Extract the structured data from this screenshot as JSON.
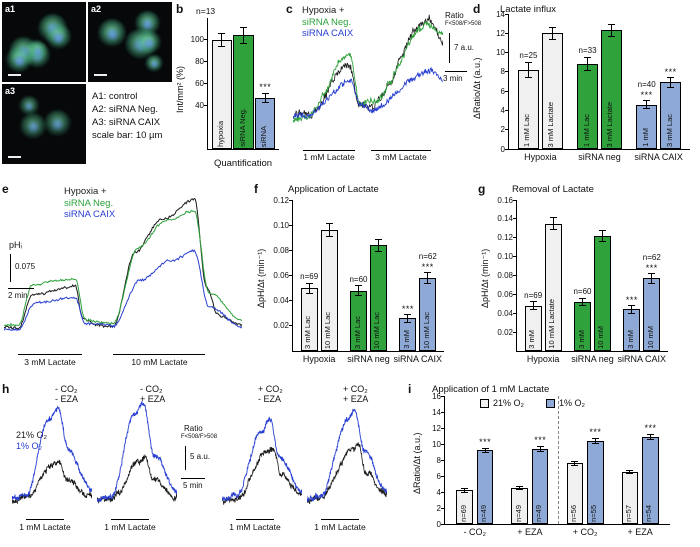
{
  "colors": {
    "green": "#2fa23c",
    "blue": "#8ea9d6",
    "blue_trace": "#2940d0",
    "black": "#1a1a1a",
    "gray": "#f0f0f0"
  },
  "panel_a": {
    "images": [
      {
        "tag": "a1",
        "cells": 6,
        "dim": 1,
        "seed": 11
      },
      {
        "tag": "a2",
        "cells": 5,
        "dim": 1,
        "seed": 29
      },
      {
        "tag": "a3",
        "cells": 3,
        "dim": 0.8,
        "seed": 53
      }
    ],
    "legend": [
      "A1: control",
      "A2: siRNA Neg.",
      "A3: siRNA CAIX",
      "scale bar: 10 µm"
    ]
  },
  "panel_b": {
    "letter": "b",
    "n_top": "n=13",
    "ylabel": "Int/mm² (%)",
    "xlabel": "Quantification",
    "chart": {
      "type": "bar",
      "ymin": 0,
      "ymax": 120,
      "yticks": [
        "40",
        "60",
        "80",
        "100"
      ],
      "bars": [
        {
          "label": "hypoxia",
          "value": 100,
          "err": 6,
          "color": "gray"
        },
        {
          "label": "siRNA Neg.",
          "value": 104,
          "err": 7,
          "color": "green"
        },
        {
          "label": "siRNA",
          "value": 47,
          "err": 4,
          "color": "blue",
          "sig": "***"
        }
      ]
    }
  },
  "panel_c": {
    "letter": "c",
    "legend": [
      {
        "text": "Hypoxia +"
      },
      {
        "text": "siRNA Neg."
      },
      {
        "text": "siRNA CAIX"
      }
    ],
    "scale": {
      "l1": "Ratio",
      "l2": "F<508/F>508",
      "v": "7 a.u.",
      "h": "3 min"
    },
    "apps": [
      {
        "label": "1 mM Lactate"
      },
      {
        "label": "3 mM Lactate"
      }
    ],
    "plot": {
      "seed": 101,
      "traces": [
        {
          "color": "black",
          "noise": 0.05,
          "width": 0.8,
          "points": [
            [
              0,
              0.22
            ],
            [
              0.08,
              0.22
            ],
            [
              0.38,
              0.62
            ],
            [
              0.44,
              0.34
            ],
            [
              0.52,
              0.3
            ],
            [
              0.9,
              0.95
            ],
            [
              1,
              0.8
            ]
          ]
        },
        {
          "color": "green",
          "noise": 0.04,
          "width": 0.9,
          "points": [
            [
              0,
              0.18
            ],
            [
              0.08,
              0.2
            ],
            [
              0.38,
              0.68
            ],
            [
              0.45,
              0.34
            ],
            [
              0.52,
              0.32
            ],
            [
              0.88,
              0.9
            ],
            [
              1,
              0.85
            ]
          ]
        },
        {
          "color": "blue_trace",
          "noise": 0.035,
          "width": 0.9,
          "points": [
            [
              0,
              0.22
            ],
            [
              0.08,
              0.22
            ],
            [
              0.38,
              0.47
            ],
            [
              0.45,
              0.3
            ],
            [
              0.52,
              0.28
            ],
            [
              0.9,
              0.55
            ],
            [
              1,
              0.5
            ]
          ]
        }
      ]
    }
  },
  "panel_d": {
    "letter": "d",
    "title": "Lactate influx",
    "ylabel": "ΔRatio/Δt (a.u.)",
    "chart": {
      "type": "bar",
      "ymin": 0,
      "ymax": 14,
      "yticks": [
        "0",
        "2",
        "4",
        "6",
        "8",
        "10",
        "12",
        "14"
      ],
      "groups": [
        "Hypoxia",
        "siRNA neg",
        "siRNA CAIX"
      ],
      "bars": [
        {
          "group": 0,
          "label": "1 mM Lac",
          "n": "n=25",
          "value": 8.2,
          "err": 0.8,
          "color": "gray"
        },
        {
          "group": 0,
          "label": "3 mM Lactate",
          "value": 12.0,
          "err": 0.6,
          "color": "gray"
        },
        {
          "group": 1,
          "label": "1 mM Lac",
          "n": "n=33",
          "value": 8.8,
          "err": 0.7,
          "color": "green"
        },
        {
          "group": 1,
          "label": "3 mM Lactate",
          "value": 12.3,
          "err": 0.6,
          "color": "green"
        },
        {
          "group": 2,
          "label": "1 mM",
          "n": "n=40",
          "value": 4.6,
          "err": 0.4,
          "color": "blue",
          "sig": "***"
        },
        {
          "group": 2,
          "label": "3 mM Lac",
          "value": 6.9,
          "err": 0.5,
          "color": "blue",
          "sig": "***"
        }
      ]
    }
  },
  "panel_e": {
    "letter": "e",
    "legend": [
      {
        "text": "Hypoxia +"
      },
      {
        "text": "siRNA Neg."
      },
      {
        "text": "siRNA CAIX"
      }
    ],
    "scale": {
      "l1": "pHᵢ",
      "v": "0.075",
      "h": "2 min"
    },
    "apps": [
      {
        "label": "3 mM Lactate"
      },
      {
        "label": "10 mM Lactate"
      }
    ],
    "plot": {
      "seed": 202,
      "traces": [
        {
          "color": "black",
          "noise": 0.013,
          "width": 1,
          "points": [
            [
              0,
              0.14
            ],
            [
              0.06,
              0.14
            ],
            [
              0.12,
              0.36
            ],
            [
              0.3,
              0.4
            ],
            [
              0.33,
              0.2
            ],
            [
              0.38,
              0.16
            ],
            [
              0.46,
              0.15
            ],
            [
              0.55,
              0.62
            ],
            [
              0.66,
              0.82
            ],
            [
              0.8,
              0.96
            ],
            [
              0.85,
              0.4
            ],
            [
              0.9,
              0.22
            ],
            [
              1,
              0.16
            ]
          ]
        },
        {
          "color": "green",
          "noise": 0.013,
          "width": 1,
          "points": [
            [
              0,
              0.16
            ],
            [
              0.06,
              0.16
            ],
            [
              0.12,
              0.42
            ],
            [
              0.3,
              0.45
            ],
            [
              0.34,
              0.2
            ],
            [
              0.46,
              0.17
            ],
            [
              0.56,
              0.64
            ],
            [
              0.68,
              0.82
            ],
            [
              0.8,
              0.88
            ],
            [
              0.86,
              0.36
            ],
            [
              1,
              0.18
            ]
          ]
        },
        {
          "color": "blue_trace",
          "noise": 0.013,
          "width": 1,
          "points": [
            [
              0,
              0.13
            ],
            [
              0.06,
              0.13
            ],
            [
              0.13,
              0.3
            ],
            [
              0.3,
              0.33
            ],
            [
              0.34,
              0.17
            ],
            [
              0.46,
              0.15
            ],
            [
              0.57,
              0.44
            ],
            [
              0.7,
              0.56
            ],
            [
              0.8,
              0.62
            ],
            [
              0.86,
              0.28
            ],
            [
              1,
              0.15
            ]
          ]
        }
      ]
    }
  },
  "panel_f": {
    "letter": "f",
    "title": "Application of Lactate",
    "ylabel": "ΔpH/Δt (min⁻¹)",
    "chart": {
      "type": "bar",
      "ymin": 0,
      "ymax": 0.12,
      "yticks": [
        "0.02",
        "0.04",
        "0.06",
        "0.08",
        "0.10",
        "0.12"
      ],
      "groups": [
        "Hypoxia",
        "siRNA neg",
        "siRNA CAIX"
      ],
      "bars": [
        {
          "group": 0,
          "label": "3 mM Lac",
          "n": "n=69",
          "value": 0.05,
          "err": 0.004,
          "color": "gray"
        },
        {
          "group": 0,
          "label": "10 mM Lac",
          "value": 0.096,
          "err": 0.005,
          "color": "gray"
        },
        {
          "group": 1,
          "label": "3 mM Lac",
          "n": "n=60",
          "value": 0.048,
          "err": 0.004,
          "color": "green"
        },
        {
          "group": 1,
          "label": "10 mM Lac",
          "value": 0.084,
          "err": 0.005,
          "color": "green"
        },
        {
          "group": 2,
          "label": "3 mM",
          "value": 0.026,
          "err": 0.003,
          "color": "blue",
          "sig": "***"
        },
        {
          "group": 2,
          "label": "10 mM Lac",
          "n": "n=62",
          "value": 0.058,
          "err": 0.004,
          "color": "blue",
          "sig": "***"
        }
      ]
    }
  },
  "panel_g": {
    "letter": "g",
    "title": "Removal of Lactate",
    "ylabel": "ΔpH/Δt (min⁻¹)",
    "chart": {
      "type": "bar",
      "ymin": 0,
      "ymax": 0.16,
      "yticks": [
        "0.02",
        "0.04",
        "0.06",
        "0.08",
        "0.10",
        "0.12",
        "0.14",
        "0.16"
      ],
      "groups": [
        "Hypoxia",
        "siRNA neg",
        "siRNA CAIX"
      ],
      "bars": [
        {
          "group": 0,
          "label": "3 mM",
          "n": "n=69",
          "value": 0.048,
          "err": 0.004,
          "color": "gray"
        },
        {
          "group": 0,
          "label": "10 mM Lactate",
          "value": 0.135,
          "err": 0.006,
          "color": "gray"
        },
        {
          "group": 1,
          "label": "3 mM",
          "n": "n=60",
          "value": 0.052,
          "err": 0.004,
          "color": "green"
        },
        {
          "group": 1,
          "label": "10 mM",
          "value": 0.122,
          "err": 0.006,
          "color": "green"
        },
        {
          "group": 2,
          "label": "3 mM",
          "value": 0.044,
          "err": 0.004,
          "color": "blue",
          "sig": "***"
        },
        {
          "group": 2,
          "label": "10 mM",
          "n": "n=62",
          "value": 0.077,
          "err": 0.005,
          "color": "blue",
          "sig": "***"
        }
      ]
    }
  },
  "panel_h": {
    "letter": "h",
    "legend": [
      {
        "text": "21% O₂"
      },
      {
        "text": "1% O₂"
      }
    ],
    "scale": {
      "l1": "Ratio",
      "l2": "F<508/F>508",
      "v": "5 a.u.",
      "h": "5 min"
    },
    "conds": [
      [
        "- CO₂",
        "- EZA"
      ],
      [
        "- CO₂",
        "+ EZA"
      ],
      [
        "+ CO₂",
        "- EZA"
      ],
      [
        "+ CO₂",
        "+ EZA"
      ]
    ],
    "app_label": "1 mM Lactate",
    "plots": [
      {
        "seed": 301,
        "traces": [
          {
            "color": "black",
            "noise": 0.04,
            "width": 0.8,
            "points": [
              [
                0,
                0.12
              ],
              [
                0.18,
                0.13
              ],
              [
                0.5,
                0.42
              ],
              [
                0.58,
                0.46
              ],
              [
                0.68,
                0.3
              ],
              [
                1,
                0.16
              ]
            ]
          },
          {
            "color": "blue_trace",
            "noise": 0.035,
            "width": 0.9,
            "points": [
              [
                0,
                0.14
              ],
              [
                0.18,
                0.16
              ],
              [
                0.45,
                0.8
              ],
              [
                0.58,
                0.92
              ],
              [
                0.7,
                0.55
              ],
              [
                1,
                0.22
              ]
            ]
          }
        ]
      },
      {
        "seed": 302,
        "traces": [
          {
            "color": "black",
            "noise": 0.04,
            "width": 0.8,
            "points": [
              [
                0,
                0.12
              ],
              [
                0.18,
                0.13
              ],
              [
                0.52,
                0.45
              ],
              [
                0.6,
                0.48
              ],
              [
                0.7,
                0.3
              ],
              [
                1,
                0.16
              ]
            ]
          },
          {
            "color": "blue_trace",
            "noise": 0.035,
            "width": 0.9,
            "points": [
              [
                0,
                0.14
              ],
              [
                0.18,
                0.16
              ],
              [
                0.46,
                0.85
              ],
              [
                0.58,
                0.95
              ],
              [
                0.72,
                0.5
              ],
              [
                1,
                0.2
              ]
            ]
          }
        ]
      },
      {
        "seed": 303,
        "traces": [
          {
            "color": "black",
            "noise": 0.04,
            "width": 0.8,
            "points": [
              [
                0,
                0.12
              ],
              [
                0.18,
                0.14
              ],
              [
                0.55,
                0.52
              ],
              [
                0.64,
                0.55
              ],
              [
                0.74,
                0.35
              ],
              [
                1,
                0.18
              ]
            ]
          },
          {
            "color": "blue_trace",
            "noise": 0.035,
            "width": 0.9,
            "points": [
              [
                0,
                0.14
              ],
              [
                0.18,
                0.17
              ],
              [
                0.5,
                0.72
              ],
              [
                0.6,
                0.82
              ],
              [
                0.72,
                0.5
              ],
              [
                1,
                0.2
              ]
            ]
          }
        ]
      },
      {
        "seed": 304,
        "traces": [
          {
            "color": "black",
            "noise": 0.04,
            "width": 0.8,
            "points": [
              [
                0,
                0.12
              ],
              [
                0.18,
                0.14
              ],
              [
                0.55,
                0.55
              ],
              [
                0.64,
                0.58
              ],
              [
                0.74,
                0.36
              ],
              [
                1,
                0.18
              ]
            ]
          },
          {
            "color": "blue_trace",
            "noise": 0.035,
            "width": 0.9,
            "points": [
              [
                0,
                0.14
              ],
              [
                0.18,
                0.17
              ],
              [
                0.5,
                0.8
              ],
              [
                0.6,
                0.9
              ],
              [
                0.72,
                0.52
              ],
              [
                1,
                0.2
              ]
            ]
          }
        ]
      }
    ]
  },
  "panel_i": {
    "letter": "i",
    "title": "Application of 1 mM Lactate",
    "ylabel": "ΔRatio/Δt (a.u.)",
    "legend": [
      {
        "text": "21% O₂",
        "color": "gray"
      },
      {
        "text": "1% O₂",
        "color": "blue"
      }
    ],
    "chart": {
      "type": "bar",
      "ymin": 0,
      "ymax": 16,
      "yticks": [
        "0",
        "2",
        "4",
        "6",
        "8",
        "10",
        "12",
        "14",
        "16"
      ],
      "groups": [
        "- CO₂",
        "+ EZA",
        "+ CO₂",
        "+ EZA"
      ],
      "divider_after_group": 1,
      "bars": [
        {
          "group": 0,
          "n": "n=69",
          "n_pos": "inside",
          "value": 4.2,
          "err": 0.2,
          "color": "gray"
        },
        {
          "group": 0,
          "n": "n=49",
          "n_pos": "inside",
          "value": 9.2,
          "err": 0.3,
          "color": "blue",
          "sig": "***"
        },
        {
          "group": 1,
          "n": "n=49",
          "n_pos": "inside",
          "value": 4.5,
          "err": 0.2,
          "color": "gray"
        },
        {
          "group": 1,
          "n": "n=49",
          "n_pos": "inside",
          "value": 9.4,
          "err": 0.3,
          "color": "blue",
          "sig": "***"
        },
        {
          "group": 2,
          "n": "n=56",
          "n_pos": "inside",
          "value": 7.6,
          "err": 0.25,
          "color": "gray"
        },
        {
          "group": 2,
          "n": "n=55",
          "n_pos": "inside",
          "value": 10.4,
          "err": 0.3,
          "color": "blue",
          "sig": "***"
        },
        {
          "group": 3,
          "n": "n=57",
          "n_pos": "inside",
          "value": 6.5,
          "err": 0.2,
          "color": "gray"
        },
        {
          "group": 3,
          "n": "n=54",
          "n_pos": "inside",
          "value": 10.9,
          "err": 0.3,
          "color": "blue",
          "sig": "***"
        }
      ]
    }
  }
}
